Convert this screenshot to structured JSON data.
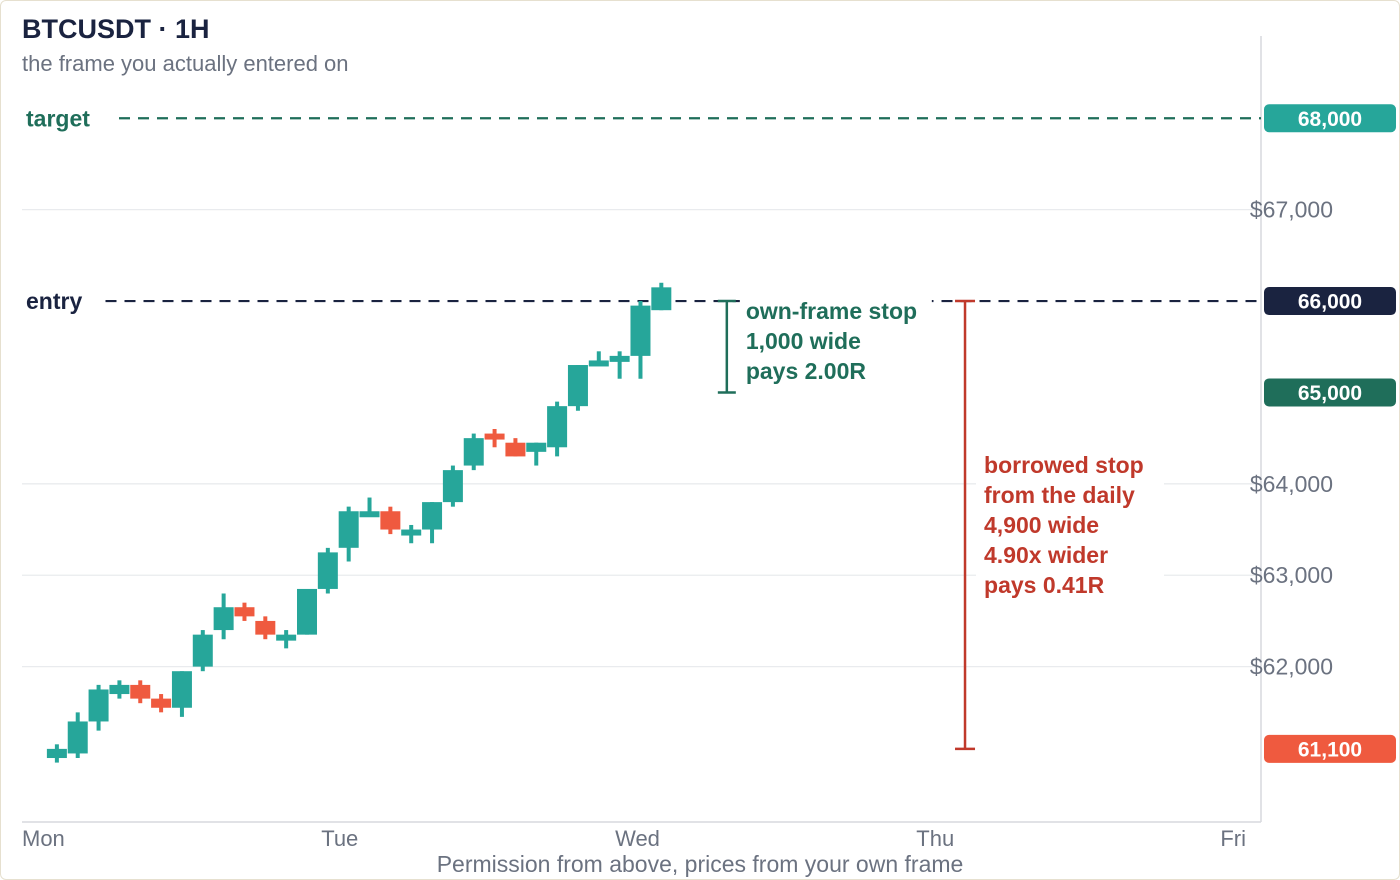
{
  "chart_data": {
    "type": "candlestick",
    "title": "BTCUSDT · 1H",
    "subtitle": "the frame you actually entered on",
    "caption": "Permission from above, prices from your own frame",
    "ylim": [
      60300,
      68900
    ],
    "yticks": [
      {
        "value": 67000,
        "label": "$67,000"
      },
      {
        "value": 64000,
        "label": "$64,000"
      },
      {
        "value": 63000,
        "label": "$63,000"
      },
      {
        "value": 62000,
        "label": "$62,000"
      }
    ],
    "grid": true,
    "xlim": [
      0,
      4
    ],
    "xticks": [
      {
        "value": 0,
        "label": "Mon"
      },
      {
        "value": 1,
        "label": "Tue"
      },
      {
        "value": 2,
        "label": "Wed"
      },
      {
        "value": 3,
        "label": "Thu"
      },
      {
        "value": 4,
        "label": "Fri"
      }
    ],
    "levels": [
      {
        "name": "target",
        "label": "target",
        "value": 68000,
        "badge": "68,000",
        "color": "#1f6e5a",
        "badge_color": "#26a69a"
      },
      {
        "name": "entry",
        "label": "entry",
        "value": 66000,
        "badge": "66,000",
        "color": "#1a2340",
        "badge_color": "#1a2340"
      }
    ],
    "stop_badges": [
      {
        "name": "own-stop",
        "value": 65000,
        "badge": "65,000",
        "color": "#1f6e5a"
      },
      {
        "name": "daily-stop",
        "value": 61100,
        "badge": "61,100",
        "color": "#ef5a3f"
      }
    ],
    "colors": {
      "up": "#26a69a",
      "down": "#ef5a3f",
      "own_stop": "#1f6e5a",
      "borrowed_stop": "#c0392b"
    },
    "candles": [
      {
        "t": 0.05,
        "o": 61000,
        "h": 61150,
        "l": 60950,
        "c": 61100
      },
      {
        "t": 0.12,
        "o": 61050,
        "h": 61500,
        "l": 61000,
        "c": 61400
      },
      {
        "t": 0.19,
        "o": 61400,
        "h": 61800,
        "l": 61300,
        "c": 61750
      },
      {
        "t": 0.26,
        "o": 61700,
        "h": 61850,
        "l": 61650,
        "c": 61800
      },
      {
        "t": 0.33,
        "o": 61800,
        "h": 61850,
        "l": 61600,
        "c": 61650
      },
      {
        "t": 0.4,
        "o": 61650,
        "h": 61700,
        "l": 61500,
        "c": 61550
      },
      {
        "t": 0.47,
        "o": 61550,
        "h": 61950,
        "l": 61450,
        "c": 61950
      },
      {
        "t": 0.54,
        "o": 62000,
        "h": 62400,
        "l": 61950,
        "c": 62350
      },
      {
        "t": 0.61,
        "o": 62400,
        "h": 62800,
        "l": 62300,
        "c": 62650
      },
      {
        "t": 0.68,
        "o": 62650,
        "h": 62700,
        "l": 62500,
        "c": 62550
      },
      {
        "t": 0.75,
        "o": 62500,
        "h": 62550,
        "l": 62300,
        "c": 62350
      },
      {
        "t": 0.82,
        "o": 62350,
        "h": 62400,
        "l": 62200,
        "c": 62350
      },
      {
        "t": 0.89,
        "o": 62350,
        "h": 62850,
        "l": 62350,
        "c": 62850
      },
      {
        "t": 0.96,
        "o": 62850,
        "h": 63300,
        "l": 62800,
        "c": 63250
      },
      {
        "t": 1.03,
        "o": 63300,
        "h": 63750,
        "l": 63150,
        "c": 63700
      },
      {
        "t": 1.1,
        "o": 63700,
        "h": 63850,
        "l": 63650,
        "c": 63700
      },
      {
        "t": 1.17,
        "o": 63700,
        "h": 63750,
        "l": 63450,
        "c": 63500
      },
      {
        "t": 1.24,
        "o": 63500,
        "h": 63550,
        "l": 63350,
        "c": 63500
      },
      {
        "t": 1.31,
        "o": 63500,
        "h": 63800,
        "l": 63350,
        "c": 63800
      },
      {
        "t": 1.38,
        "o": 63800,
        "h": 64200,
        "l": 63750,
        "c": 64150
      },
      {
        "t": 1.45,
        "o": 64200,
        "h": 64550,
        "l": 64150,
        "c": 64500
      },
      {
        "t": 1.52,
        "o": 64550,
        "h": 64600,
        "l": 64400,
        "c": 64500
      },
      {
        "t": 1.59,
        "o": 64450,
        "h": 64500,
        "l": 64300,
        "c": 64300
      },
      {
        "t": 1.66,
        "o": 64350,
        "h": 64450,
        "l": 64200,
        "c": 64450
      },
      {
        "t": 1.73,
        "o": 64400,
        "h": 64900,
        "l": 64300,
        "c": 64850
      },
      {
        "t": 1.8,
        "o": 64850,
        "h": 65300,
        "l": 64800,
        "c": 65300
      },
      {
        "t": 1.87,
        "o": 65350,
        "h": 65450,
        "l": 65300,
        "c": 65350
      },
      {
        "t": 1.94,
        "o": 65350,
        "h": 65450,
        "l": 65150,
        "c": 65400
      },
      {
        "t": 2.01,
        "o": 65400,
        "h": 66000,
        "l": 65150,
        "c": 65950
      },
      {
        "t": 2.08,
        "o": 65900,
        "h": 66200,
        "l": 65900,
        "c": 66150
      }
    ],
    "annotations": [
      {
        "name": "own-frame-stop",
        "x": 2.3,
        "from": 66000,
        "to": 65000,
        "lines": [
          "own-frame stop",
          "1,000 wide",
          "pays 2.00R"
        ]
      },
      {
        "name": "borrowed-stop",
        "x": 3.1,
        "from": 66000,
        "to": 61100,
        "lines": [
          "borrowed stop",
          "from the daily",
          "4,900 wide",
          "4.90x wider",
          "pays 0.41R"
        ]
      }
    ]
  }
}
